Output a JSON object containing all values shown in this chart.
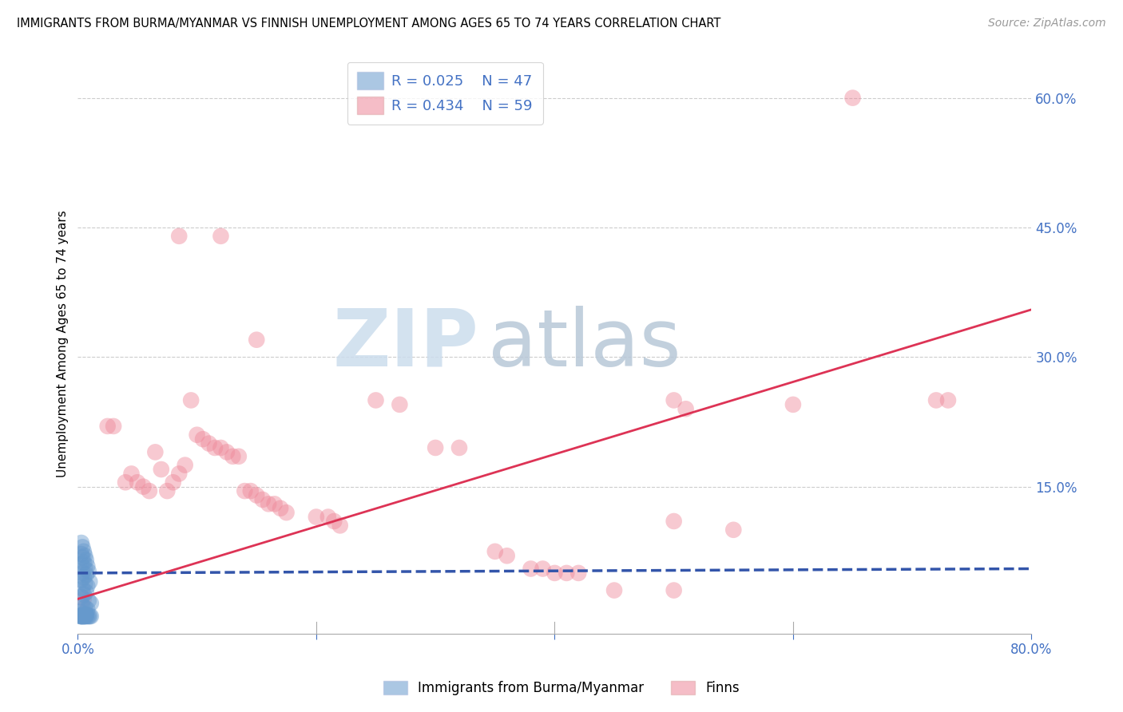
{
  "title": "IMMIGRANTS FROM BURMA/MYANMAR VS FINNISH UNEMPLOYMENT AMONG AGES 65 TO 74 YEARS CORRELATION CHART",
  "source": "Source: ZipAtlas.com",
  "ylabel": "Unemployment Among Ages 65 to 74 years",
  "xlim": [
    0.0,
    0.8
  ],
  "ylim": [
    -0.02,
    0.65
  ],
  "xticks": [
    0.0,
    0.2,
    0.4,
    0.6,
    0.8
  ],
  "xtick_labels": [
    "0.0%",
    "",
    "",
    "",
    "80.0%"
  ],
  "ytick_vals_right": [
    0.6,
    0.45,
    0.3,
    0.15
  ],
  "ytick_labels_right": [
    "60.0%",
    "45.0%",
    "30.0%",
    "15.0%"
  ],
  "axis_color": "#4472c4",
  "background_color": "#ffffff",
  "legend_R1": "R = 0.025",
  "legend_N1": "N = 47",
  "legend_R2": "R = 0.434",
  "legend_N2": "N = 59",
  "blue_color": "#6699cc",
  "pink_color": "#ee8899",
  "blue_line_color": "#3355aa",
  "pink_line_color": "#dd3355",
  "blue_scatter": [
    [
      0.003,
      0.085
    ],
    [
      0.004,
      0.08
    ],
    [
      0.005,
      0.075
    ],
    [
      0.003,
      0.072
    ],
    [
      0.006,
      0.07
    ],
    [
      0.004,
      0.068
    ],
    [
      0.007,
      0.065
    ],
    [
      0.005,
      0.062
    ],
    [
      0.003,
      0.06
    ],
    [
      0.008,
      0.058
    ],
    [
      0.006,
      0.055
    ],
    [
      0.009,
      0.052
    ],
    [
      0.004,
      0.05
    ],
    [
      0.007,
      0.048
    ],
    [
      0.005,
      0.045
    ],
    [
      0.003,
      0.042
    ],
    [
      0.01,
      0.04
    ],
    [
      0.006,
      0.038
    ],
    [
      0.008,
      0.035
    ],
    [
      0.004,
      0.032
    ],
    [
      0.007,
      0.028
    ],
    [
      0.005,
      0.025
    ],
    [
      0.003,
      0.022
    ],
    [
      0.009,
      0.018
    ],
    [
      0.011,
      0.015
    ],
    [
      0.004,
      0.012
    ],
    [
      0.006,
      0.01
    ],
    [
      0.008,
      0.008
    ],
    [
      0.002,
      0.005
    ],
    [
      0.005,
      0.003
    ],
    [
      0.007,
      0.002
    ],
    [
      0.004,
      0.001
    ],
    [
      0.003,
      0.0
    ],
    [
      0.01,
      0.0
    ],
    [
      0.006,
      0.0
    ],
    [
      0.009,
      0.0
    ],
    [
      0.005,
      0.0
    ],
    [
      0.003,
      0.0
    ],
    [
      0.007,
      0.0
    ],
    [
      0.004,
      0.0
    ],
    [
      0.011,
      0.0
    ],
    [
      0.008,
      0.0
    ],
    [
      0.002,
      0.0
    ],
    [
      0.006,
      0.0
    ],
    [
      0.005,
      0.0
    ],
    [
      0.004,
      0.0
    ],
    [
      0.003,
      0.0
    ]
  ],
  "pink_scatter": [
    [
      0.005,
      0.02
    ],
    [
      0.025,
      0.22
    ],
    [
      0.04,
      0.155
    ],
    [
      0.045,
      0.165
    ],
    [
      0.05,
      0.155
    ],
    [
      0.055,
      0.15
    ],
    [
      0.06,
      0.145
    ],
    [
      0.065,
      0.19
    ],
    [
      0.07,
      0.17
    ],
    [
      0.075,
      0.145
    ],
    [
      0.08,
      0.155
    ],
    [
      0.085,
      0.165
    ],
    [
      0.09,
      0.175
    ],
    [
      0.095,
      0.25
    ],
    [
      0.1,
      0.21
    ],
    [
      0.105,
      0.205
    ],
    [
      0.11,
      0.2
    ],
    [
      0.115,
      0.195
    ],
    [
      0.12,
      0.195
    ],
    [
      0.125,
      0.19
    ],
    [
      0.085,
      0.44
    ],
    [
      0.12,
      0.44
    ],
    [
      0.03,
      0.22
    ],
    [
      0.13,
      0.185
    ],
    [
      0.135,
      0.185
    ],
    [
      0.14,
      0.145
    ],
    [
      0.145,
      0.145
    ],
    [
      0.15,
      0.14
    ],
    [
      0.155,
      0.135
    ],
    [
      0.16,
      0.13
    ],
    [
      0.165,
      0.13
    ],
    [
      0.17,
      0.125
    ],
    [
      0.175,
      0.12
    ],
    [
      0.15,
      0.32
    ],
    [
      0.2,
      0.115
    ],
    [
      0.21,
      0.115
    ],
    [
      0.215,
      0.11
    ],
    [
      0.22,
      0.105
    ],
    [
      0.25,
      0.25
    ],
    [
      0.27,
      0.245
    ],
    [
      0.3,
      0.195
    ],
    [
      0.32,
      0.195
    ],
    [
      0.35,
      0.075
    ],
    [
      0.36,
      0.07
    ],
    [
      0.38,
      0.055
    ],
    [
      0.39,
      0.055
    ],
    [
      0.4,
      0.05
    ],
    [
      0.41,
      0.05
    ],
    [
      0.42,
      0.05
    ],
    [
      0.45,
      0.03
    ],
    [
      0.5,
      0.03
    ],
    [
      0.5,
      0.25
    ],
    [
      0.51,
      0.24
    ],
    [
      0.5,
      0.11
    ],
    [
      0.55,
      0.1
    ],
    [
      0.6,
      0.245
    ],
    [
      0.65,
      0.6
    ],
    [
      0.72,
      0.25
    ],
    [
      0.73,
      0.25
    ]
  ],
  "blue_trendline_x": [
    0.0,
    0.8
  ],
  "blue_trendline_y": [
    0.05,
    0.055
  ],
  "pink_trendline_x": [
    0.0,
    0.8
  ],
  "pink_trendline_y": [
    0.02,
    0.355
  ]
}
